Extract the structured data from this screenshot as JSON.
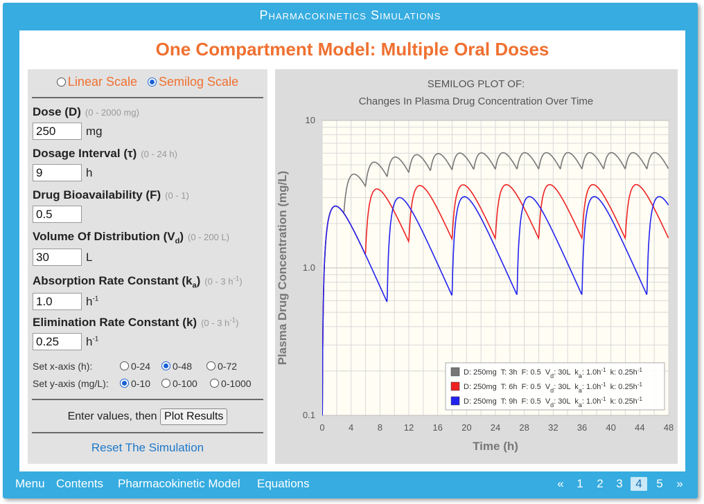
{
  "app": {
    "title": "Pharmacokinetics Simulations"
  },
  "page": {
    "title": "One Compartment Model: Multiple Oral Doses"
  },
  "scale": {
    "linear_label": "Linear Scale",
    "semilog_label": "Semilog Scale",
    "selected": "semilog"
  },
  "fields": [
    {
      "label": "Dose (D)",
      "range": "(0 - 2000 mg)",
      "value": "250",
      "unit": "mg"
    },
    {
      "label": "Dosage Interval (τ)",
      "range": "(0 - 24 h)",
      "value": "9",
      "unit": "h"
    },
    {
      "label": "Drug Bioavailability (F)",
      "range": "(0 - 1)",
      "value": "0.5",
      "unit": ""
    },
    {
      "label": "Volume Of Distribution (V",
      "label_sub": "d",
      "label_end": ")",
      "range": "(0 - 200 L)",
      "value": "30",
      "unit": "L"
    },
    {
      "label": "Absorption Rate Constant (k",
      "label_sub": "a",
      "label_end": ")",
      "range": "(0 - 3 h",
      "range_sup": "-1",
      "range_end": ")",
      "value": "1.0",
      "unit": "h",
      "unit_sup": "-1"
    },
    {
      "label": "Elimination Rate Constant (k)",
      "range": "(0 - 3 h",
      "range_sup": "-1",
      "range_end": ")",
      "value": "0.25",
      "unit": "h",
      "unit_sup": "-1"
    }
  ],
  "xaxis_set": {
    "label": "Set x-axis (h):",
    "options": [
      "0-24",
      "0-48",
      "0-72"
    ],
    "selected": 1
  },
  "yaxis_set": {
    "label": "Set y-axis (mg/L):",
    "options": [
      "0-10",
      "0-100",
      "0-1000"
    ],
    "selected": 0
  },
  "actions": {
    "prompt": "Enter values, then",
    "plot_label": "Plot Results",
    "reset_label": "Reset The Simulation"
  },
  "nav": {
    "links": [
      "Menu",
      "Contents",
      "Pharmacokinetic Model",
      "Equations"
    ],
    "prev": "«",
    "next": "»",
    "pages": [
      "1",
      "2",
      "3",
      "4",
      "5"
    ],
    "active_page": "4"
  },
  "chart_data": {
    "type": "line",
    "title": "SEMILOG PLOT OF:",
    "subtitle": "Changes In Plasma Drug Concentration Over Time",
    "xlabel": "Time (h)",
    "ylabel": "Plasma Drug Concentration (mg/L)",
    "xlim": [
      0,
      48
    ],
    "ylim": [
      0.1,
      10
    ],
    "yscale": "log",
    "xticks": [
      "0",
      "4",
      "8",
      "12",
      "16",
      "20",
      "24",
      "28",
      "32",
      "36",
      "40",
      "44",
      "48"
    ],
    "yticks": [
      "0.1",
      "1.0",
      "10"
    ],
    "grid": true,
    "legend_position": "bottom-right",
    "series": [
      {
        "legend": {
          "dose": "D: 250mg",
          "interval": "T: 3h",
          "bioavailability": "F: 0.5",
          "vd_sym": "V",
          "vd_sub": "d",
          "vd_val": ": 30L",
          "ka_sym": "k",
          "ka_sub": "a",
          "ka_val": ": 1.0h",
          "ka_sup": "-1",
          "k_val": "k: 0.25h",
          "k_sup": "-1"
        },
        "color": "#777777",
        "dose_mg": 250,
        "tau_h": 3,
        "F": 0.5,
        "Vd_L": 30,
        "ka": 1.0,
        "k": 0.25
      },
      {
        "legend": {
          "dose": "D: 250mg",
          "interval": "T: 6h",
          "bioavailability": "F: 0.5",
          "vd_sym": "V",
          "vd_sub": "d",
          "vd_val": ": 30L",
          "ka_sym": "k",
          "ka_sub": "a",
          "ka_val": ": 1.0h",
          "ka_sup": "-1",
          "k_val": "k: 0.25h",
          "k_sup": "-1"
        },
        "color": "#ee2222",
        "dose_mg": 250,
        "tau_h": 6,
        "F": 0.5,
        "Vd_L": 30,
        "ka": 1.0,
        "k": 0.25
      },
      {
        "legend": {
          "dose": "D: 250mg",
          "interval": "T: 9h",
          "bioavailability": "F: 0.5",
          "vd_sym": "V",
          "vd_sub": "d",
          "vd_val": ": 30L",
          "ka_sym": "k",
          "ka_sub": "a",
          "ka_val": ": 1.0h",
          "ka_sup": "-1",
          "k_val": "k: 0.25h",
          "k_sup": "-1"
        },
        "color": "#2222ee",
        "dose_mg": 250,
        "tau_h": 9,
        "F": 0.5,
        "Vd_L": 30,
        "ka": 1.0,
        "k": 0.25
      }
    ]
  }
}
